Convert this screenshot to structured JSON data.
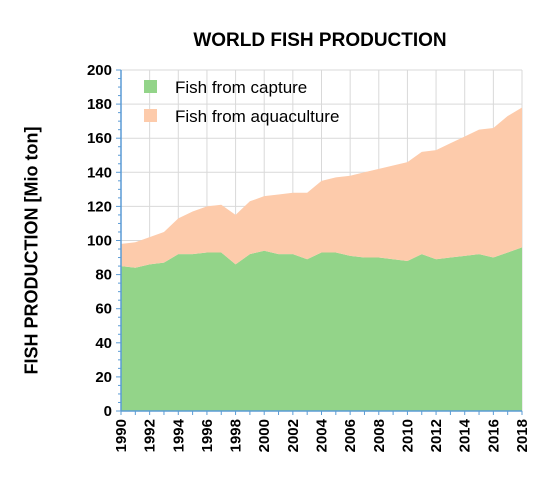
{
  "chart_data": {
    "type": "area",
    "stacked": true,
    "title": "WORLD FISH PRODUCTION",
    "ylabel": "FISH PRODUCTION [Mio ton]",
    "xlabel": "",
    "ylim": [
      0,
      200
    ],
    "yticks": [
      0,
      20,
      40,
      60,
      80,
      100,
      120,
      140,
      160,
      180,
      200
    ],
    "xlim": [
      1990,
      2018
    ],
    "xticks": [
      1990,
      1992,
      1994,
      1996,
      1998,
      2000,
      2002,
      2004,
      2006,
      2008,
      2010,
      2012,
      2014,
      2016,
      2018
    ],
    "grid": true,
    "legend_position": "top-left",
    "x": [
      1990,
      1991,
      1992,
      1993,
      1994,
      1995,
      1996,
      1997,
      1998,
      1999,
      2000,
      2001,
      2002,
      2003,
      2004,
      2005,
      2006,
      2007,
      2008,
      2009,
      2010,
      2011,
      2012,
      2013,
      2014,
      2015,
      2016,
      2017,
      2018
    ],
    "series": [
      {
        "name": "Fish from capture",
        "color": "#93d489",
        "values": [
          85,
          84,
          86,
          87,
          92,
          92,
          93,
          93,
          86,
          92,
          94,
          92,
          92,
          89,
          93,
          93,
          91,
          90,
          90,
          89,
          88,
          92,
          89,
          90,
          91,
          92,
          90,
          93,
          96
        ]
      },
      {
        "name": "Fish from aquaculture",
        "color": "#fdcbab",
        "values": [
          13,
          15,
          16,
          18,
          21,
          25,
          27,
          28,
          29,
          31,
          32,
          35,
          36,
          39,
          42,
          44,
          47,
          50,
          52,
          55,
          58,
          60,
          64,
          67,
          70,
          73,
          76,
          80,
          82
        ]
      }
    ]
  }
}
